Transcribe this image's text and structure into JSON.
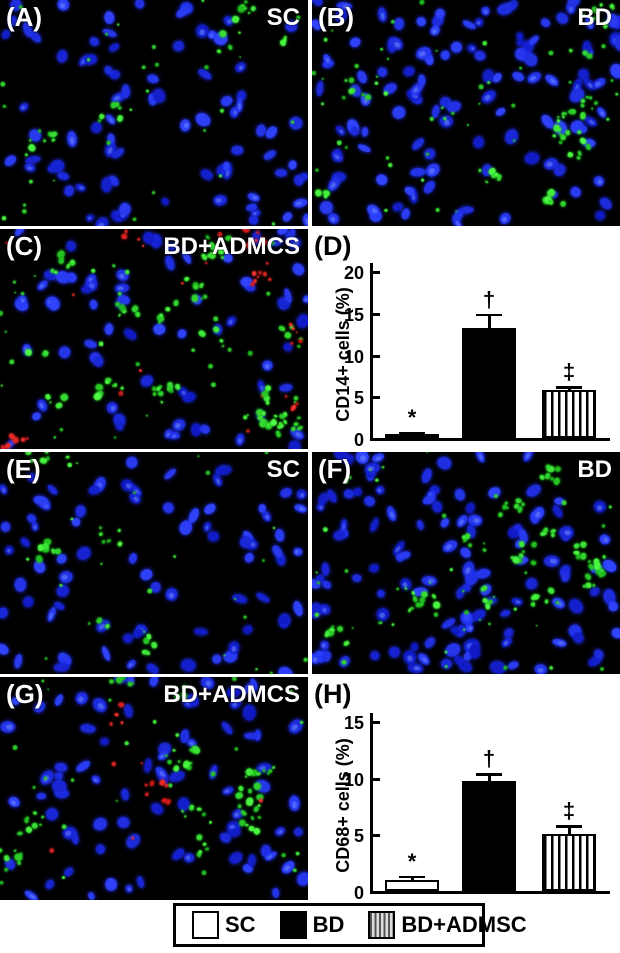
{
  "figure_colors": {
    "background": "#ffffff",
    "micrograph_background": "#000000",
    "nuclei_blue": "#2230e8",
    "stain_green": "#2ed52e",
    "stain_red": "#e02020",
    "label_white": "#ffffff",
    "ink_black": "#000000"
  },
  "panels": [
    {
      "id": "A",
      "label": "(A)",
      "condition": "SC",
      "type": "micrograph",
      "seed": 11,
      "nuclei": 82,
      "green_clusters": 5,
      "green_specks": 30,
      "red_clusters": 0,
      "red_specks": 0
    },
    {
      "id": "B",
      "label": "(B)",
      "condition": "BD",
      "type": "micrograph",
      "seed": 22,
      "nuclei": 120,
      "green_clusters": 11,
      "green_specks": 48,
      "red_clusters": 0,
      "red_specks": 0
    },
    {
      "id": "C",
      "label": "(C)",
      "condition": "BD+ADMCS",
      "type": "micrograph",
      "seed": 33,
      "nuclei": 72,
      "green_clusters": 15,
      "green_specks": 42,
      "red_clusters": 6,
      "red_specks": 12
    },
    {
      "id": "E",
      "label": "(E)",
      "condition": "SC",
      "type": "micrograph",
      "seed": 44,
      "nuclei": 78,
      "green_clusters": 6,
      "green_specks": 22,
      "red_clusters": 0,
      "red_specks": 0
    },
    {
      "id": "F",
      "label": "(F)",
      "condition": "BD",
      "type": "micrograph",
      "seed": 55,
      "nuclei": 125,
      "green_clusters": 13,
      "green_specks": 42,
      "red_clusters": 0,
      "red_specks": 0
    },
    {
      "id": "G",
      "label": "(G)",
      "condition": "BD+ADMCS",
      "type": "micrograph",
      "seed": 66,
      "nuclei": 82,
      "green_clusters": 11,
      "green_specks": 32,
      "red_clusters": 2,
      "red_specks": 6
    }
  ],
  "chart_data": [
    {
      "type": "bar",
      "panel_label": "(D)",
      "categories": [
        "SC",
        "BD",
        "BD+ADMSC"
      ],
      "values": [
        0.5,
        13.2,
        5.7
      ],
      "errors": [
        0.2,
        1.7,
        0.5
      ],
      "sig_symbols": [
        "*",
        "†",
        "‡"
      ],
      "bar_styles": [
        "open",
        "solid",
        "vstripes"
      ],
      "title": "",
      "xlabel": "",
      "ylabel": "CD14+ cells (%)",
      "ylim": [
        0,
        20
      ],
      "yticks": [
        0,
        5,
        10,
        15,
        20
      ],
      "grid": false,
      "legend_position": "bottom-shared"
    },
    {
      "type": "bar",
      "panel_label": "(H)",
      "categories": [
        "SC",
        "BD",
        "BD+ADMSC"
      ],
      "values": [
        1.0,
        9.7,
        5.0
      ],
      "errors": [
        0.35,
        0.7,
        0.8
      ],
      "sig_symbols": [
        "*",
        "†",
        "‡"
      ],
      "bar_styles": [
        "open",
        "solid",
        "vstripes"
      ],
      "title": "",
      "xlabel": "",
      "ylabel": "CD68+ cells (%)",
      "ylim": [
        0,
        15
      ],
      "yticks": [
        0,
        5,
        10,
        15
      ],
      "grid": false,
      "legend_position": "bottom-shared"
    }
  ],
  "legend": {
    "items": [
      {
        "label": "SC",
        "style": "open"
      },
      {
        "label": "BD",
        "style": "solid"
      },
      {
        "label": "BD+ADMSC",
        "style": "vstripes"
      }
    ]
  }
}
